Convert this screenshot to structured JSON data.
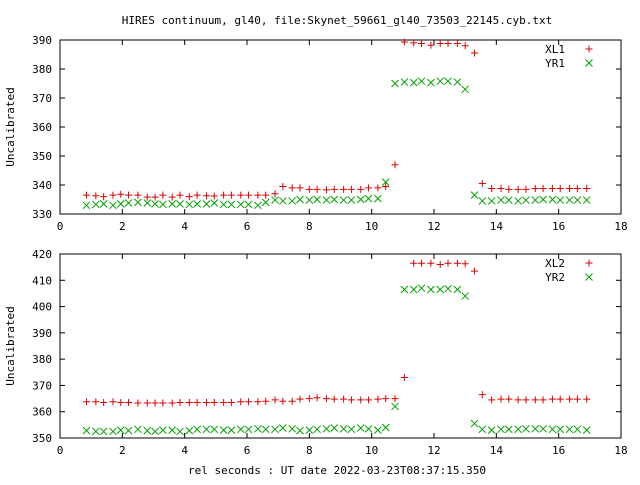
{
  "title": "HIRES continuum, gl40, file:Skynet_59661_gl40_73503_22145.cyb.txt",
  "xlabel": "rel seconds : UT date 2022-03-23T08:37:15.350",
  "chart_data": [
    {
      "type": "scatter",
      "ylabel": "Uncalibrated",
      "xlim": [
        0,
        18
      ],
      "ylim": [
        330,
        390
      ],
      "xticks": [
        0,
        2,
        4,
        6,
        8,
        10,
        12,
        14,
        16,
        18
      ],
      "yticks": [
        330,
        340,
        350,
        360,
        370,
        380,
        390
      ],
      "legend_position": "top-right",
      "series": [
        {
          "name": "XL1",
          "color": "#dd0000",
          "marker": "plus",
          "x": [
            0.85,
            1.15,
            1.4,
            1.7,
            1.95,
            2.2,
            2.5,
            2.8,
            3.05,
            3.3,
            3.6,
            3.85,
            4.15,
            4.4,
            4.7,
            4.95,
            5.25,
            5.5,
            5.8,
            6.05,
            6.35,
            6.6,
            6.9,
            7.15,
            7.45,
            7.7,
            8.0,
            8.25,
            8.55,
            8.8,
            9.1,
            9.35,
            9.65,
            9.9,
            10.2,
            10.45,
            10.75,
            11.05,
            11.35,
            11.6,
            11.9,
            12.2,
            12.45,
            12.75,
            13.0,
            13.3,
            13.55,
            13.85,
            14.15,
            14.4,
            14.7,
            14.95,
            15.25,
            15.5,
            15.8,
            16.05,
            16.35,
            16.6,
            16.9
          ],
          "y": [
            336.5,
            336.3,
            336.0,
            336.5,
            336.8,
            336.5,
            336.5,
            335.8,
            335.8,
            336.5,
            335.8,
            336.5,
            336.0,
            336.5,
            336.3,
            336.2,
            336.5,
            336.5,
            336.5,
            336.5,
            336.5,
            336.5,
            337.0,
            339.5,
            339.0,
            339.0,
            338.5,
            338.5,
            338.3,
            338.5,
            338.5,
            338.5,
            338.5,
            339.0,
            339.0,
            339.5,
            347.0,
            389.3,
            389.0,
            388.8,
            388.2,
            388.8,
            388.8,
            388.8,
            388.0,
            385.5,
            340.5,
            338.8,
            338.8,
            338.5,
            338.5,
            338.5,
            338.8,
            338.8,
            338.8,
            338.8,
            338.8,
            338.8,
            338.8
          ]
        },
        {
          "name": "YR1",
          "color": "#00a000",
          "marker": "cross",
          "x": [
            0.85,
            1.15,
            1.4,
            1.7,
            1.95,
            2.2,
            2.5,
            2.8,
            3.05,
            3.3,
            3.6,
            3.85,
            4.15,
            4.4,
            4.7,
            4.95,
            5.25,
            5.5,
            5.8,
            6.05,
            6.35,
            6.6,
            6.9,
            7.15,
            7.45,
            7.7,
            8.0,
            8.25,
            8.55,
            8.8,
            9.1,
            9.35,
            9.65,
            9.9,
            10.2,
            10.45,
            10.75,
            11.05,
            11.35,
            11.6,
            11.9,
            12.2,
            12.45,
            12.75,
            13.0,
            13.3,
            13.55,
            13.85,
            14.15,
            14.4,
            14.7,
            14.95,
            15.25,
            15.5,
            15.8,
            16.05,
            16.35,
            16.6,
            16.9
          ],
          "y": [
            333.0,
            333.3,
            333.5,
            333.0,
            333.5,
            333.8,
            334.0,
            333.8,
            333.5,
            333.3,
            333.5,
            333.5,
            333.3,
            333.5,
            333.5,
            333.8,
            333.3,
            333.3,
            333.3,
            333.3,
            333.0,
            334.0,
            334.8,
            334.5,
            334.5,
            335.0,
            334.8,
            335.0,
            334.8,
            335.0,
            334.8,
            334.8,
            335.0,
            335.3,
            335.3,
            341.0,
            375.0,
            375.5,
            375.3,
            375.8,
            375.3,
            375.8,
            375.8,
            375.5,
            373.0,
            336.5,
            334.5,
            334.5,
            334.8,
            334.8,
            334.5,
            334.8,
            334.8,
            335.0,
            335.0,
            334.8,
            334.8,
            334.8,
            334.8
          ]
        }
      ]
    },
    {
      "type": "scatter",
      "ylabel": "Uncalibrated",
      "xlim": [
        0,
        18
      ],
      "ylim": [
        350,
        420
      ],
      "xticks": [
        0,
        2,
        4,
        6,
        8,
        10,
        12,
        14,
        16,
        18
      ],
      "yticks": [
        350,
        360,
        370,
        380,
        390,
        400,
        410,
        420
      ],
      "legend_position": "top-right",
      "series": [
        {
          "name": "XL2",
          "color": "#dd0000",
          "marker": "plus",
          "x": [
            0.85,
            1.15,
            1.4,
            1.7,
            1.95,
            2.2,
            2.5,
            2.8,
            3.05,
            3.3,
            3.6,
            3.85,
            4.15,
            4.4,
            4.7,
            4.95,
            5.25,
            5.5,
            5.8,
            6.05,
            6.35,
            6.6,
            6.9,
            7.15,
            7.45,
            7.7,
            8.0,
            8.25,
            8.55,
            8.8,
            9.1,
            9.35,
            9.65,
            9.9,
            10.2,
            10.45,
            10.75,
            11.05,
            11.35,
            11.6,
            11.9,
            12.2,
            12.45,
            12.75,
            13.0,
            13.3,
            13.55,
            13.85,
            14.15,
            14.4,
            14.7,
            14.95,
            15.25,
            15.5,
            15.8,
            16.05,
            16.35,
            16.6,
            16.9
          ],
          "y": [
            363.8,
            363.8,
            363.5,
            363.8,
            363.5,
            363.5,
            363.3,
            363.3,
            363.3,
            363.3,
            363.3,
            363.5,
            363.5,
            363.5,
            363.5,
            363.5,
            363.5,
            363.5,
            363.8,
            363.8,
            363.8,
            364.0,
            364.5,
            364.0,
            364.0,
            364.8,
            365.0,
            365.3,
            365.0,
            364.8,
            364.8,
            364.5,
            364.5,
            364.5,
            364.8,
            365.0,
            365.0,
            373.0,
            416.5,
            416.5,
            416.5,
            416.0,
            416.5,
            416.5,
            416.3,
            413.5,
            366.5,
            364.5,
            364.8,
            364.8,
            364.5,
            364.5,
            364.5,
            364.5,
            364.8,
            364.8,
            364.8,
            364.8,
            364.8
          ]
        },
        {
          "name": "YR2",
          "color": "#00a000",
          "marker": "cross",
          "x": [
            0.85,
            1.15,
            1.4,
            1.7,
            1.95,
            2.2,
            2.5,
            2.8,
            3.05,
            3.3,
            3.6,
            3.85,
            4.15,
            4.4,
            4.7,
            4.95,
            5.25,
            5.5,
            5.8,
            6.05,
            6.35,
            6.6,
            6.9,
            7.15,
            7.45,
            7.7,
            8.0,
            8.25,
            8.55,
            8.8,
            9.1,
            9.35,
            9.65,
            9.9,
            10.2,
            10.45,
            10.75,
            11.05,
            11.35,
            11.6,
            11.9,
            12.2,
            12.45,
            12.75,
            13.0,
            13.3,
            13.55,
            13.85,
            14.15,
            14.4,
            14.7,
            14.95,
            15.25,
            15.5,
            15.8,
            16.05,
            16.35,
            16.6,
            16.9
          ],
          "y": [
            352.8,
            352.5,
            352.5,
            352.5,
            353.0,
            352.8,
            353.3,
            352.8,
            352.5,
            353.0,
            353.0,
            352.5,
            352.8,
            353.3,
            353.3,
            353.3,
            353.0,
            353.0,
            353.3,
            353.3,
            353.5,
            353.3,
            353.3,
            353.8,
            353.5,
            352.8,
            353.0,
            353.3,
            353.5,
            353.8,
            353.5,
            353.3,
            353.8,
            353.5,
            353.0,
            354.0,
            362.0,
            406.5,
            406.5,
            407.0,
            406.5,
            406.5,
            406.8,
            406.5,
            404.0,
            355.5,
            353.3,
            353.0,
            353.3,
            353.3,
            353.3,
            353.5,
            353.5,
            353.5,
            353.3,
            353.3,
            353.3,
            353.3,
            353.0
          ]
        }
      ]
    }
  ]
}
